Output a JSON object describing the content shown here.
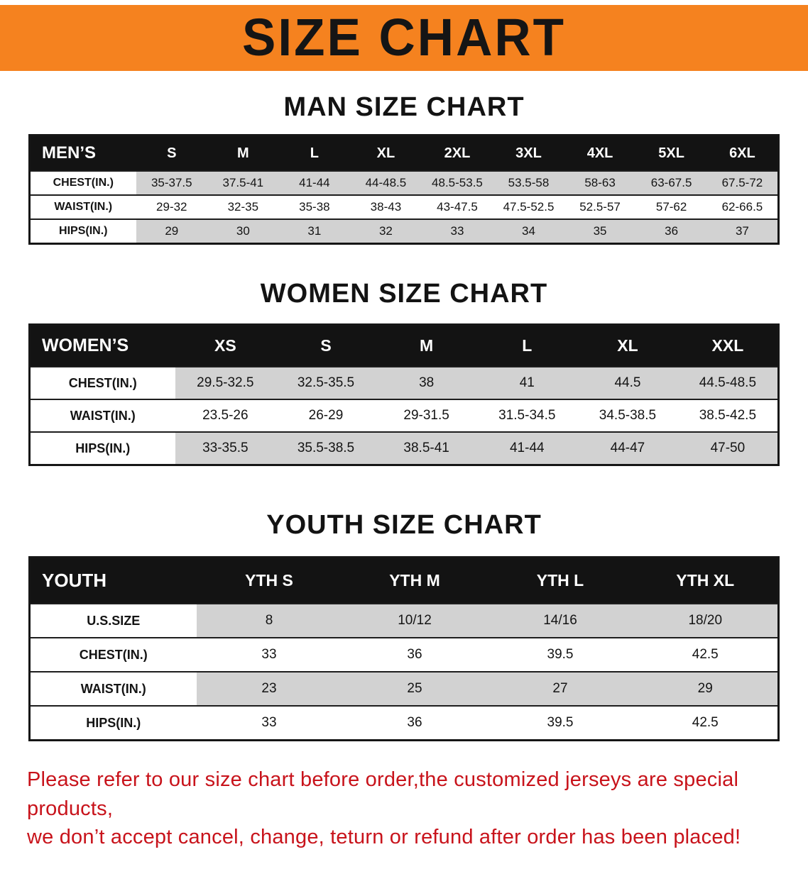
{
  "banner": {
    "title": "SIZE CHART"
  },
  "colors": {
    "banner_bg": "#F5821F",
    "table_header_bg": "#131313",
    "row_stripe": "#d2d2d2",
    "note_red": "#C8131B"
  },
  "sections": [
    {
      "heading": "MAN SIZE CHART",
      "table": {
        "header": [
          "MEN’S",
          "S",
          "M",
          "L",
          "XL",
          "2XL",
          "3XL",
          "4XL",
          "5XL",
          "6XL"
        ],
        "rows": [
          {
            "label": "CHEST(IN.)",
            "values": [
              "35-37.5",
              "37.5-41",
              "41-44",
              "44-48.5",
              "48.5-53.5",
              "53.5-58",
              "58-63",
              "63-67.5",
              "67.5-72"
            ]
          },
          {
            "label": "WAIST(IN.)",
            "values": [
              "29-32",
              "32-35",
              "35-38",
              "38-43",
              "43-47.5",
              "47.5-52.5",
              "52.5-57",
              "57-62",
              "62-66.5"
            ]
          },
          {
            "label": "HIPS(IN.)",
            "values": [
              "29",
              "30",
              "31",
              "32",
              "33",
              "34",
              "35",
              "36",
              "37"
            ]
          }
        ]
      }
    },
    {
      "heading": "WOMEN SIZE CHART",
      "table": {
        "header": [
          "WOMEN’S",
          "XS",
          "S",
          "M",
          "L",
          "XL",
          "XXL"
        ],
        "rows": [
          {
            "label": "CHEST(IN.)",
            "values": [
              "29.5-32.5",
              "32.5-35.5",
              "38",
              "41",
              "44.5",
              "44.5-48.5"
            ]
          },
          {
            "label": "WAIST(IN.)",
            "values": [
              "23.5-26",
              "26-29",
              "29-31.5",
              "31.5-34.5",
              "34.5-38.5",
              "38.5-42.5"
            ]
          },
          {
            "label": "HIPS(IN.)",
            "values": [
              "33-35.5",
              "35.5-38.5",
              "38.5-41",
              "41-44",
              "44-47",
              "47-50"
            ]
          }
        ]
      }
    },
    {
      "heading": "YOUTH SIZE CHART",
      "table": {
        "header": [
          "YOUTH",
          "YTH S",
          "YTH M",
          "YTH L",
          "YTH XL"
        ],
        "rows": [
          {
            "label": "U.S.SIZE",
            "values": [
              "8",
              "10/12",
              "14/16",
              "18/20"
            ]
          },
          {
            "label": "CHEST(IN.)",
            "values": [
              "33",
              "36",
              "39.5",
              "42.5"
            ]
          },
          {
            "label": "WAIST(IN.)",
            "values": [
              "23",
              "25",
              "27",
              "29"
            ]
          },
          {
            "label": "HIPS(IN.)",
            "values": [
              "33",
              "36",
              "39.5",
              "42.5"
            ]
          }
        ]
      }
    }
  ],
  "note": {
    "line1": "Please refer to our size chart before order,the customized jerseys are special products,",
    "line2": "we don’t accept cancel, change, teturn or refund after order has been placed!"
  }
}
